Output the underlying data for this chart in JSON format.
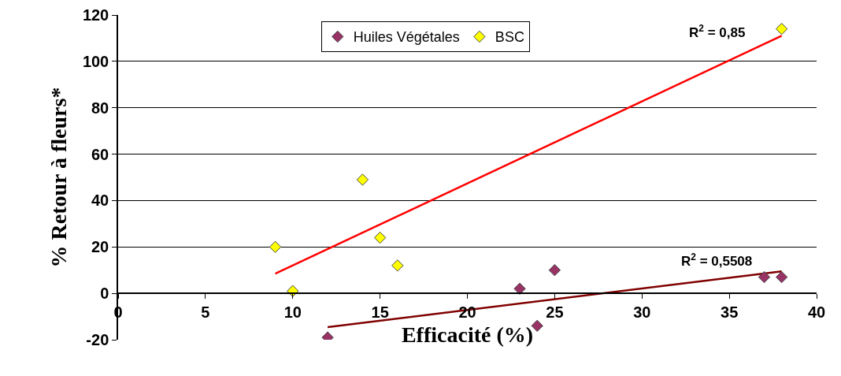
{
  "chart_data": {
    "type": "scatter",
    "xlabel": "Efficacité (%)",
    "ylabel": "% Retour à fleurs*",
    "series": [
      {
        "name": "Huiles Végétales",
        "color": "#993366",
        "x": [
          12,
          23,
          24,
          25,
          37,
          38
        ],
        "values": [
          -19,
          2,
          -14,
          10,
          7,
          7
        ]
      },
      {
        "name": "BSC",
        "color": "#ffff00",
        "x": [
          9,
          10,
          14,
          15,
          16,
          38
        ],
        "values": [
          20,
          1,
          49,
          24,
          12,
          114
        ]
      },
      {
        "type": "line",
        "color": "#ff0000",
        "marker": "none",
        "x": [
          9,
          38
        ],
        "values": [
          8.5,
          111
        ]
      },
      {
        "type": "line",
        "color": "#800000",
        "marker": "none",
        "x": [
          12,
          38
        ],
        "values": [
          -14.6,
          9.5
        ]
      }
    ],
    "annotations": [
      "R$^{2}$ = 0,85",
      "R$^{2}$ = 0,5508"
    ],
    "xlim": [
      0,
      40
    ],
    "xticks": [
      0,
      5,
      10,
      15,
      20,
      25,
      30,
      35,
      40
    ],
    "ylim": [
      -20,
      120
    ],
    "yticks": [
      -20,
      0,
      20,
      40,
      60,
      80,
      100,
      120
    ],
    "grid": "y",
    "legend": "top",
    "marker": "diamond"
  }
}
